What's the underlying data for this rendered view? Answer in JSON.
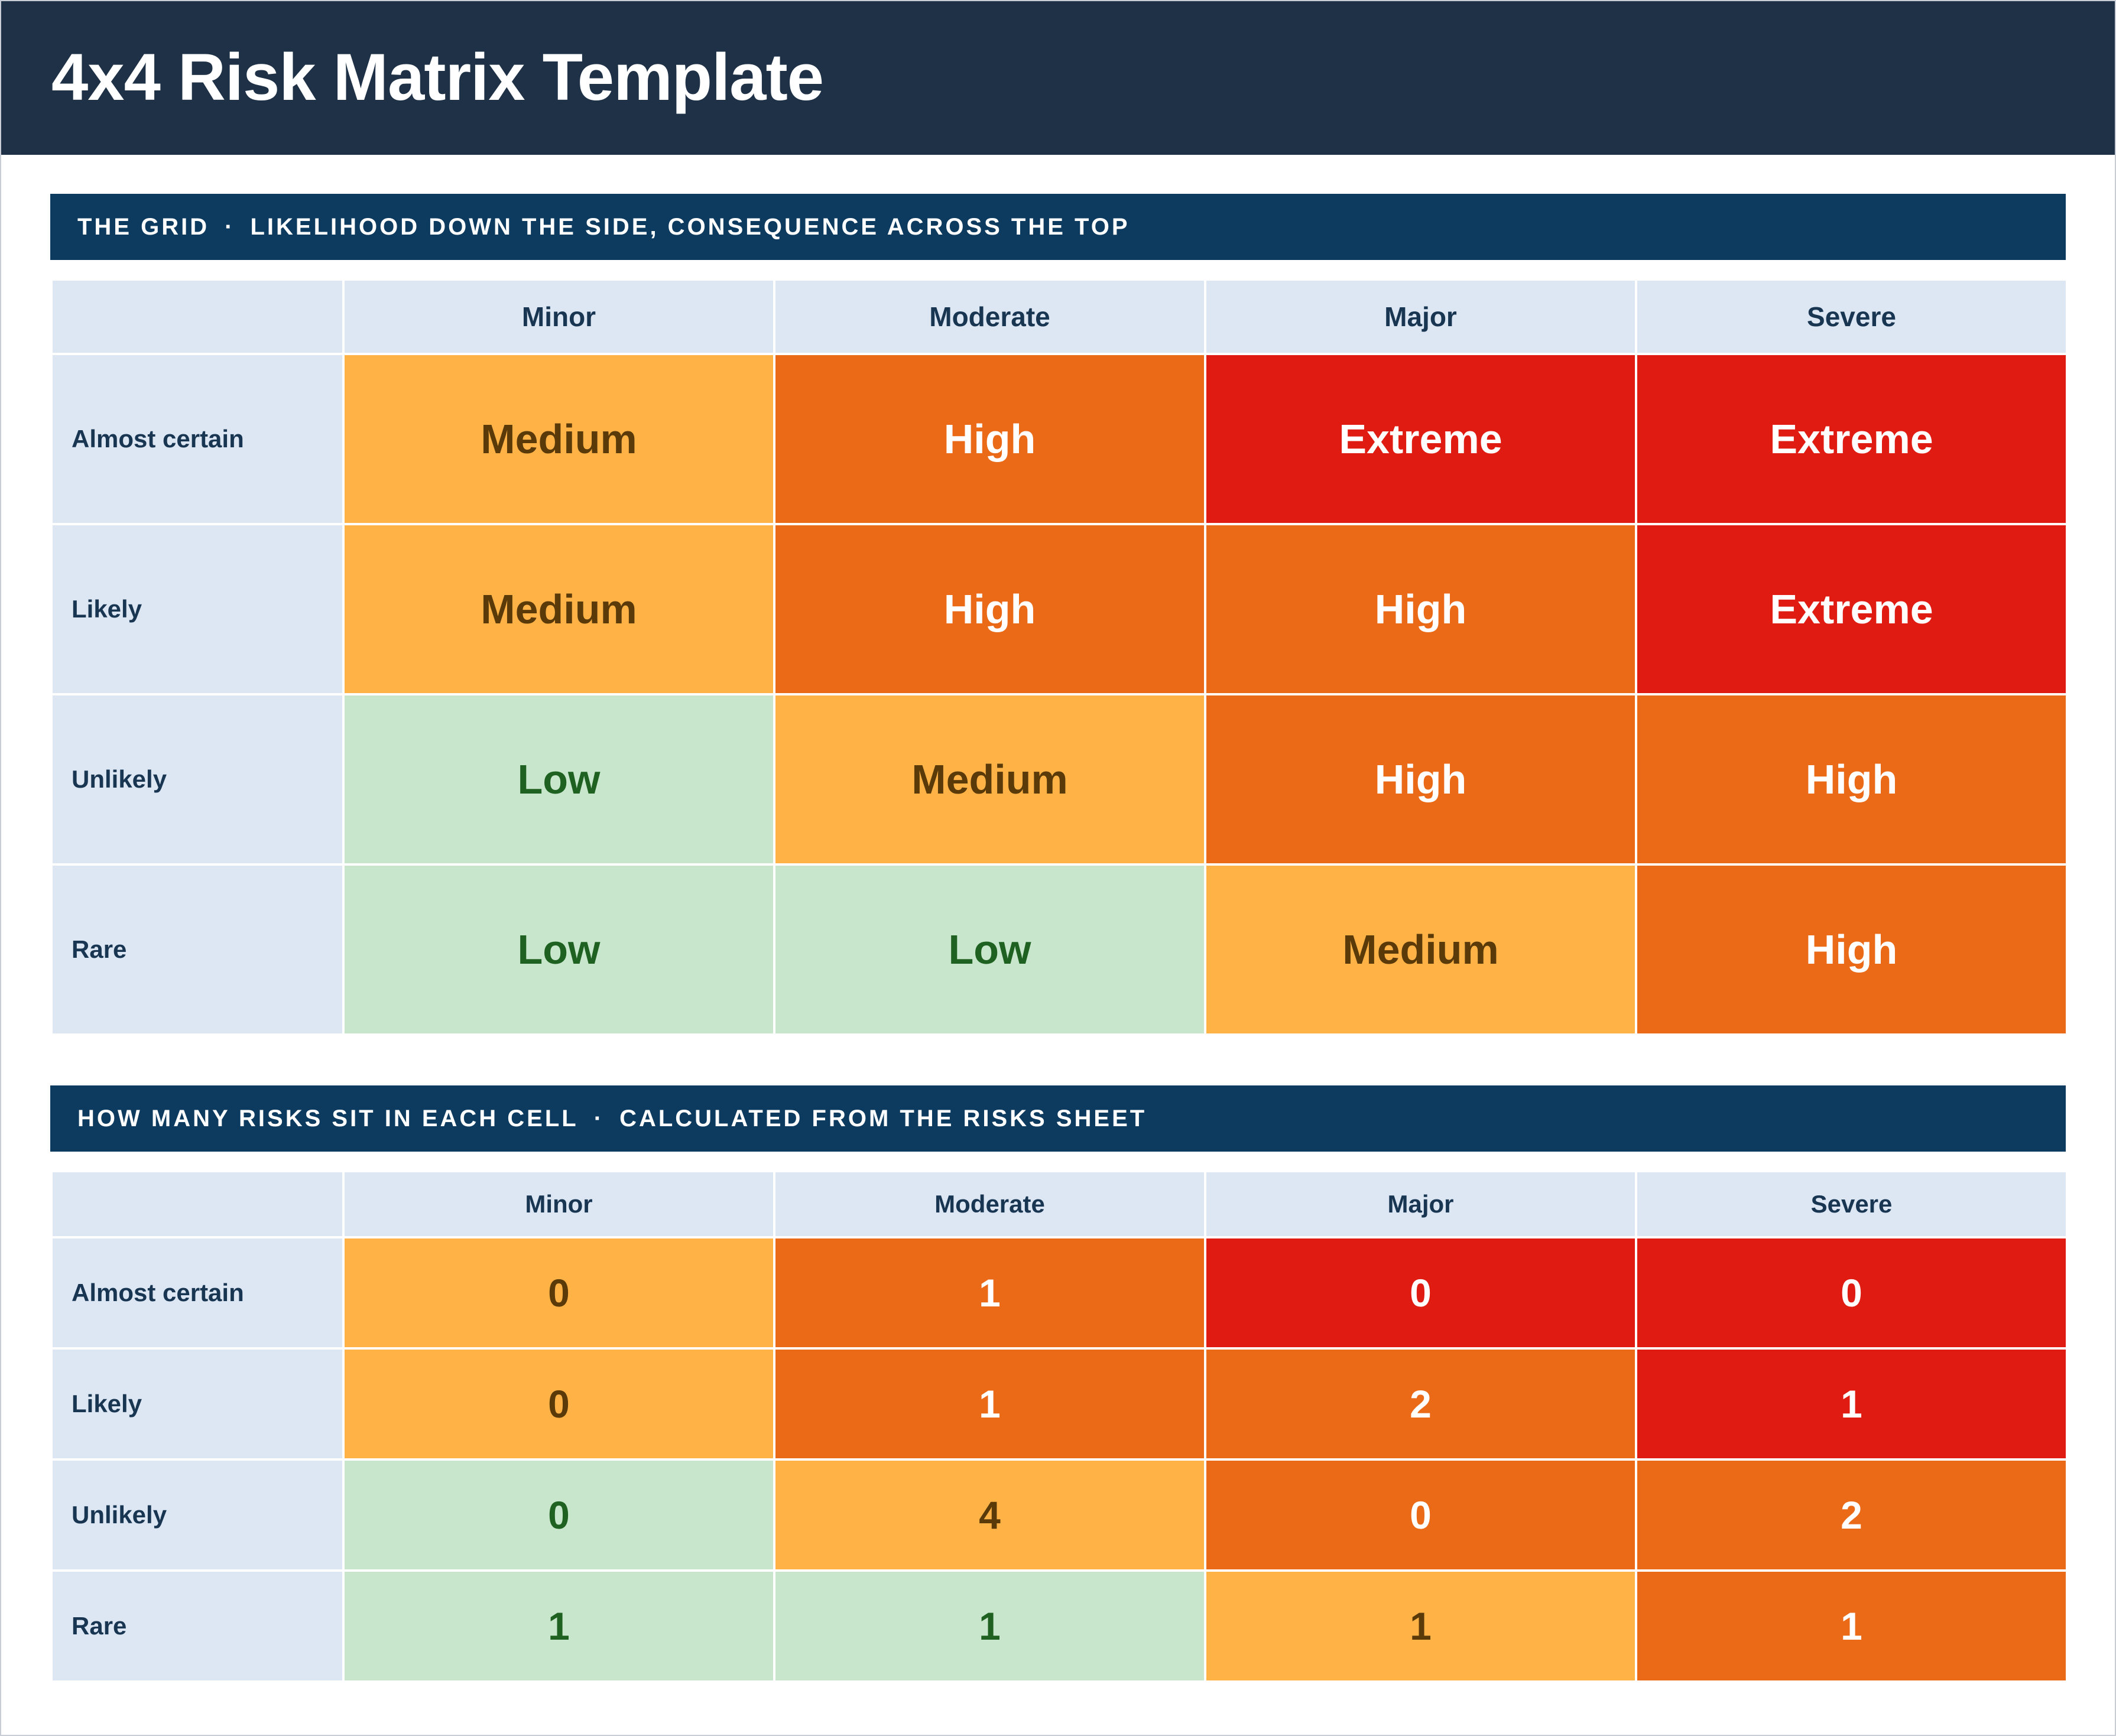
{
  "header": {
    "title": "4x4 Risk Matrix Template"
  },
  "grid_section": {
    "banner_left": "THE GRID",
    "banner_sep": "·",
    "banner_right": "LIKELIHOOD DOWN THE SIDE, CONSEQUENCE ACROSS THE TOP",
    "columns": [
      "Minor",
      "Moderate",
      "Major",
      "Severe"
    ],
    "rows": [
      {
        "label": "Almost certain",
        "cells": [
          "Medium",
          "High",
          "Extreme",
          "Extreme"
        ]
      },
      {
        "label": "Likely",
        "cells": [
          "Medium",
          "High",
          "High",
          "Extreme"
        ]
      },
      {
        "label": "Unlikely",
        "cells": [
          "Low",
          "Medium",
          "High",
          "High"
        ]
      },
      {
        "label": "Rare",
        "cells": [
          "Low",
          "Low",
          "Medium",
          "High"
        ]
      }
    ]
  },
  "count_section": {
    "banner_left": "HOW MANY RISKS SIT IN EACH CELL",
    "banner_sep": "·",
    "banner_right": "CALCULATED FROM THE RISKS SHEET",
    "columns": [
      "Minor",
      "Moderate",
      "Major",
      "Severe"
    ],
    "rows": [
      {
        "label": "Almost certain",
        "cells": [
          "0",
          "1",
          "0",
          "0"
        ]
      },
      {
        "label": "Likely",
        "cells": [
          "0",
          "1",
          "2",
          "1"
        ]
      },
      {
        "label": "Unlikely",
        "cells": [
          "0",
          "4",
          "0",
          "2"
        ]
      },
      {
        "label": "Rare",
        "cells": [
          "1",
          "1",
          "1",
          "1"
        ]
      }
    ]
  },
  "level_colors": {
    "Low": {
      "fill": "#c8e6cb",
      "text": "#1e6120"
    },
    "Medium": {
      "fill": "#ffb347",
      "text": "#5a3a08"
    },
    "High": {
      "fill": "#eb6a18",
      "text": "#ffffff"
    },
    "Extreme": {
      "fill": "#e01b12",
      "text": "#ffffff"
    }
  }
}
